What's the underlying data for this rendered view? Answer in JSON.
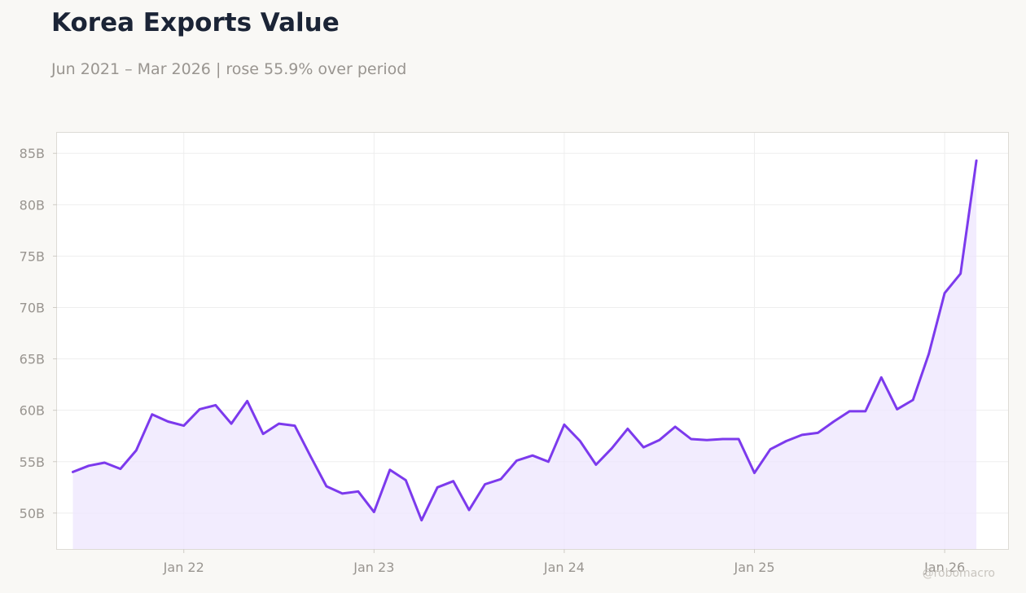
{
  "header": {
    "title": "Korea Exports Value",
    "subtitle": "Jun 2021 – Mar 2026 | rose 55.9% over period"
  },
  "watermark": "@robomacro",
  "colors": {
    "line": "#7c3aed",
    "fill": "#ede5fd",
    "background": "#f9f8f5",
    "plot_background": "#ffffff",
    "grid": "#eeeeee",
    "title": "#1b2436",
    "muted_text": "#999590"
  },
  "chart_data": {
    "type": "area",
    "title": "Korea Exports Value",
    "subtitle": "Jun 2021 – Mar 2026 | rose 55.9% over period",
    "xlabel": "",
    "ylabel": "",
    "grid": true,
    "legend": "none",
    "x_range": [
      "2021-05",
      "2026-05"
    ],
    "ylim": [
      46.5,
      87
    ],
    "y_unit": "billion",
    "y_ticks": [
      {
        "value": 50,
        "label": "50B"
      },
      {
        "value": 55,
        "label": "55B"
      },
      {
        "value": 60,
        "label": "60B"
      },
      {
        "value": 65,
        "label": "65B"
      },
      {
        "value": 70,
        "label": "70B"
      },
      {
        "value": 75,
        "label": "75B"
      },
      {
        "value": 80,
        "label": "80B"
      },
      {
        "value": 85,
        "label": "85B"
      }
    ],
    "x_ticks": [
      {
        "date": "2022-01",
        "label": "Jan 22"
      },
      {
        "date": "2023-01",
        "label": "Jan 23"
      },
      {
        "date": "2024-01",
        "label": "Jan 24"
      },
      {
        "date": "2025-01",
        "label": "Jan 25"
      },
      {
        "date": "2026-01",
        "label": "Jan 26"
      }
    ],
    "series": [
      {
        "x": [
          "2021-06",
          "2021-07",
          "2021-08",
          "2021-09",
          "2021-10",
          "2021-11",
          "2021-12",
          "2022-01",
          "2022-02",
          "2022-03",
          "2022-04",
          "2022-05",
          "2022-06",
          "2022-07",
          "2022-08",
          "2022-09",
          "2022-10",
          "2022-11",
          "2022-12",
          "2023-01",
          "2023-02",
          "2023-03",
          "2023-04",
          "2023-05",
          "2023-06",
          "2023-07",
          "2023-08",
          "2023-09",
          "2023-10",
          "2023-11",
          "2023-12",
          "2024-01",
          "2024-02",
          "2024-03",
          "2024-04",
          "2024-05",
          "2024-06",
          "2024-07",
          "2024-08",
          "2024-09",
          "2024-10",
          "2024-11",
          "2024-12",
          "2025-01",
          "2025-02",
          "2025-03",
          "2025-04",
          "2025-05",
          "2025-06",
          "2025-07",
          "2025-08",
          "2025-09",
          "2025-10",
          "2025-11",
          "2025-12",
          "2026-01",
          "2026-02",
          "2026-03"
        ],
        "values": [
          54.0,
          54.6,
          54.9,
          54.3,
          56.1,
          59.6,
          58.9,
          58.5,
          60.1,
          60.5,
          58.7,
          60.9,
          57.7,
          58.7,
          58.5,
          55.5,
          52.6,
          51.9,
          52.1,
          50.1,
          54.2,
          53.2,
          49.3,
          52.5,
          53.1,
          50.3,
          52.8,
          53.3,
          55.1,
          55.6,
          55.0,
          58.6,
          57.0,
          54.7,
          56.3,
          58.2,
          56.4,
          57.1,
          58.4,
          57.2,
          57.1,
          57.2,
          57.2,
          53.9,
          56.2,
          57.0,
          57.6,
          57.8,
          58.9,
          59.9,
          59.9,
          63.2,
          60.1,
          61.0,
          65.5,
          71.4,
          73.3,
          84.3
        ]
      }
    ]
  }
}
